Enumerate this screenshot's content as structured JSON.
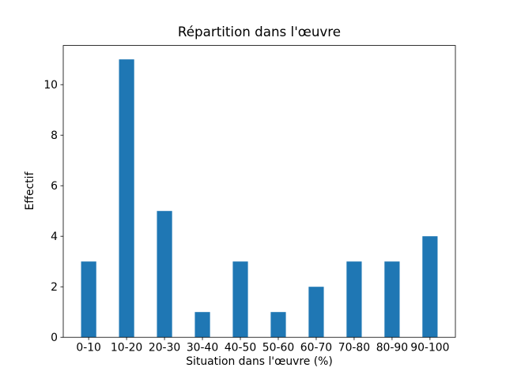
{
  "chart_data": {
    "type": "bar",
    "title": "Répartition dans l'œuvre",
    "xlabel": "Situation dans l'œuvre (%)",
    "ylabel": "Effectif",
    "categories": [
      "0-10",
      "10-20",
      "20-30",
      "30-40",
      "40-50",
      "50-60",
      "60-70",
      "70-80",
      "80-90",
      "90-100"
    ],
    "values": [
      3,
      11,
      5,
      1,
      3,
      1,
      2,
      3,
      3,
      4
    ],
    "yticks": [
      0,
      2,
      4,
      6,
      8,
      10
    ],
    "ylim": [
      0,
      11.55
    ],
    "xlim": [
      -0.67,
      9.67
    ],
    "bar_width": 0.4,
    "bar_color": "#1f77b4",
    "axis_color": "#000000",
    "background_color": "#ffffff",
    "grid": false,
    "legend": "none"
  }
}
